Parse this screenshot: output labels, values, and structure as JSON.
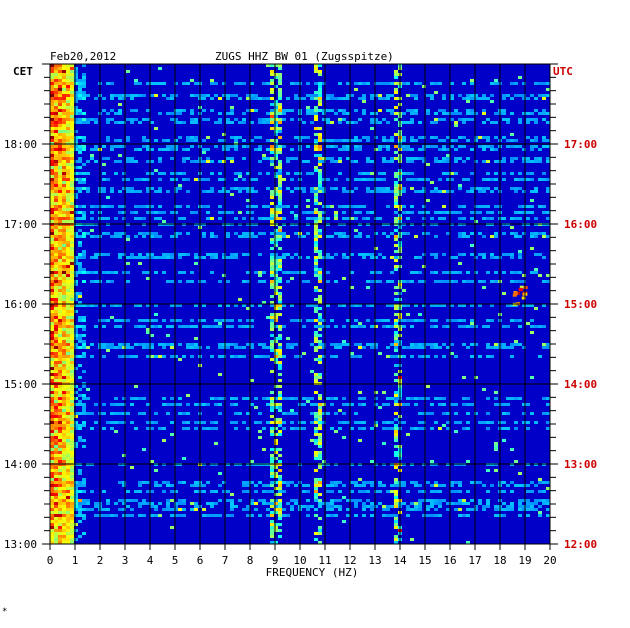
{
  "header": {
    "date": "Feb20,2012",
    "station": "ZUGS HHZ BW 01 (Zugsspitze)"
  },
  "footer_mark": "*",
  "colors": {
    "background": "#0000c8",
    "grid": "#000000",
    "utc_labels": "#cc0000",
    "cet_labels": "#000000",
    "text": "#000000"
  },
  "chart_data": {
    "type": "heatmap",
    "title": "ZUGS HHZ BW 01 (Zugsspitze)",
    "date": "Feb20,2012",
    "xlabel": "FREQUENCY (HZ)",
    "xlim": [
      0,
      20
    ],
    "x_ticks": [
      "0",
      "1",
      "2",
      "3",
      "4",
      "5",
      "6",
      "7",
      "8",
      "9",
      "10",
      "11",
      "12",
      "13",
      "14",
      "15",
      "16",
      "17",
      "18",
      "19",
      "20"
    ],
    "left_axis": {
      "label": "CET",
      "ticks": [
        "18:00",
        "17:00",
        "16:00",
        "15:00",
        "14:00",
        "13:00"
      ]
    },
    "right_axis": {
      "label": "UTC",
      "ticks": [
        "17:00",
        "16:00",
        "15:00",
        "14:00",
        "13:00",
        "12:00"
      ]
    },
    "time_range_cet": [
      "13:00",
      "19:00"
    ],
    "colormap": "jet",
    "features": [
      {
        "freq_hz": [
          0.1,
          0.8
        ],
        "description": "strong low-frequency energy, full duration"
      },
      {
        "freq_hz": [
          9.0,
          9.1
        ],
        "description": "persistent line"
      },
      {
        "freq_hz": [
          10.6,
          10.9
        ],
        "description": "persistent line"
      },
      {
        "freq_hz": [
          13.9,
          14.0
        ],
        "description": "persistent line"
      },
      {
        "freq_hz": [
          18.5,
          19.0
        ],
        "description": "burst near 15:30 CET"
      }
    ]
  }
}
